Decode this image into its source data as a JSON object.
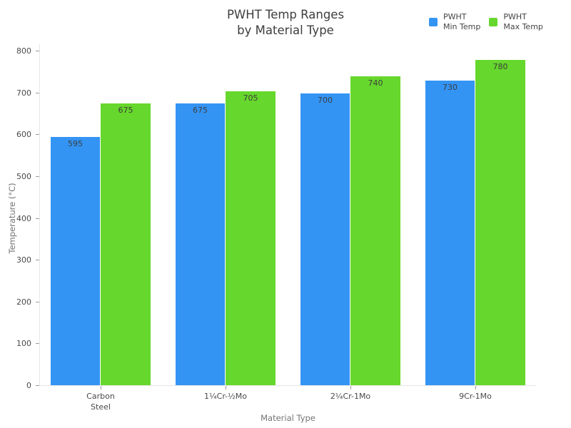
{
  "chart_data": {
    "type": "bar",
    "title_lines": [
      "PWHT Temp Ranges",
      "by Material Type"
    ],
    "title": "PWHT Temp Ranges by Material Type",
    "categories": [
      "Carbon\nSteel",
      "1¼Cr-½Mo",
      "2¼Cr-1Mo",
      "9Cr-1Mo"
    ],
    "series": [
      {
        "name": "PWHT Min Temp",
        "legend_label": "PWHT\nMin Temp",
        "color": "#3394f4",
        "values": [
          595,
          675,
          700,
          730
        ]
      },
      {
        "name": "PWHT Max Temp",
        "legend_label": "PWHT\nMax Temp",
        "color": "#66d72c",
        "values": [
          675,
          705,
          740,
          780
        ]
      }
    ],
    "xlabel": "Material Type",
    "ylabel": "Temperature (°C)",
    "ylim": [
      0,
      800
    ],
    "yticks": [
      0,
      100,
      200,
      300,
      400,
      500,
      600,
      700,
      800
    ],
    "grid": false,
    "legend_position": "top-right",
    "value_label_position": "inside-top",
    "colors": {
      "background": "#ffffff",
      "axis_line": "#e6e6e6",
      "tick": "#9b9b9b",
      "tick_label": "#4a4a4a",
      "axis_title": "#757575",
      "title": "#3d3d3d",
      "value_label": "#3d3d3d"
    }
  }
}
